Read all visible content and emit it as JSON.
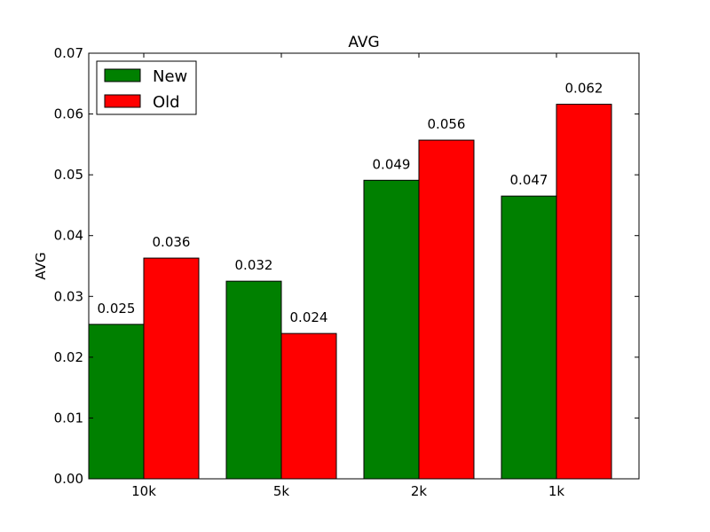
{
  "chart_data": {
    "type": "bar",
    "title": "AVG",
    "xlabel": "",
    "ylabel": "AVG",
    "categories": [
      "10k",
      "5k",
      "2k",
      "1k"
    ],
    "ylim": [
      0,
      0.07
    ],
    "yticks": [
      "0.00",
      "0.01",
      "0.02",
      "0.03",
      "0.04",
      "0.05",
      "0.06",
      "0.07"
    ],
    "grid": false,
    "legend_position": "top-left",
    "series": [
      {
        "name": "New",
        "color": "#008000",
        "values": [
          0.0254,
          0.0325,
          0.0491,
          0.0465
        ],
        "labels": [
          "0.025",
          "0.032",
          "0.049",
          "0.047"
        ]
      },
      {
        "name": "Old",
        "color": "#ff0000",
        "values": [
          0.0363,
          0.0239,
          0.0557,
          0.0616
        ],
        "labels": [
          "0.036",
          "0.024",
          "0.056",
          "0.062"
        ]
      }
    ]
  }
}
